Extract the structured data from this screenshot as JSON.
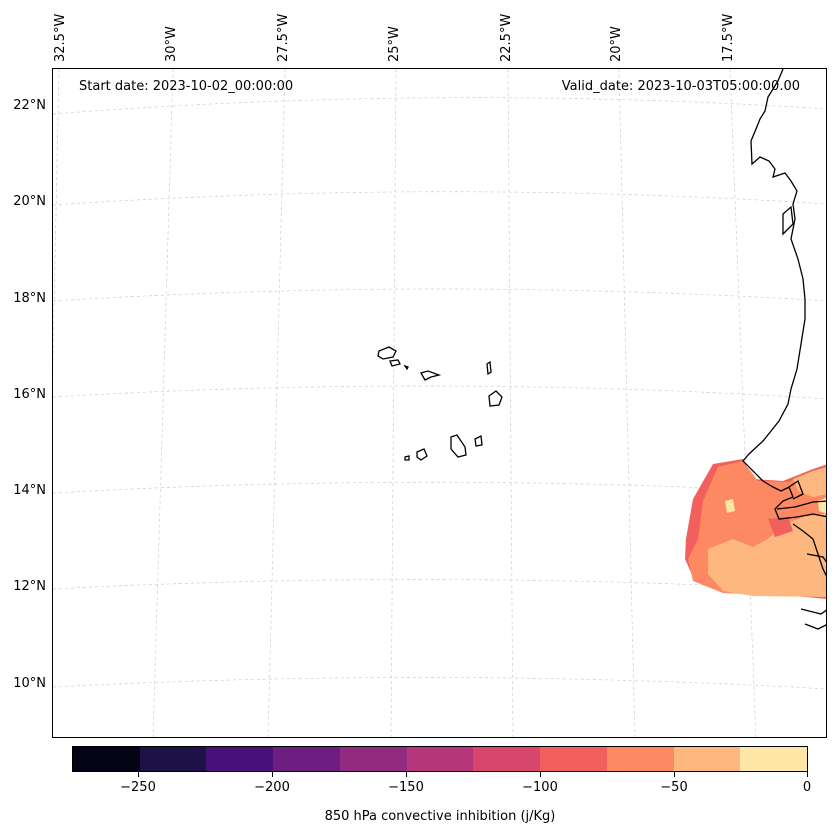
{
  "map": {
    "start_date": "Start date: 2023-10-02_00:00:00",
    "valid_date": "Valid_date: 2023-10-03T05:00:00.00",
    "lon_labels": [
      "32.5°W",
      "30°W",
      "27.5°W",
      "25°W",
      "22.5°W",
      "20°W",
      "17.5°W"
    ],
    "lat_labels": [
      "22°N",
      "20°N",
      "18°N",
      "16°N",
      "14°N",
      "12°N",
      "10°N"
    ]
  },
  "colorbar": {
    "label": "850 hPa convective inhibition (j/Kg)",
    "tick_labels": [
      "−250",
      "−200",
      "−150",
      "−100",
      "−50",
      "0"
    ],
    "colors": [
      "#050416",
      "#1e1146",
      "#4a1079",
      "#6e1d81",
      "#922b80",
      "#b5367a",
      "#d9466b",
      "#f1605d",
      "#fc8961",
      "#feb77e",
      "#fde6a6"
    ]
  }
}
